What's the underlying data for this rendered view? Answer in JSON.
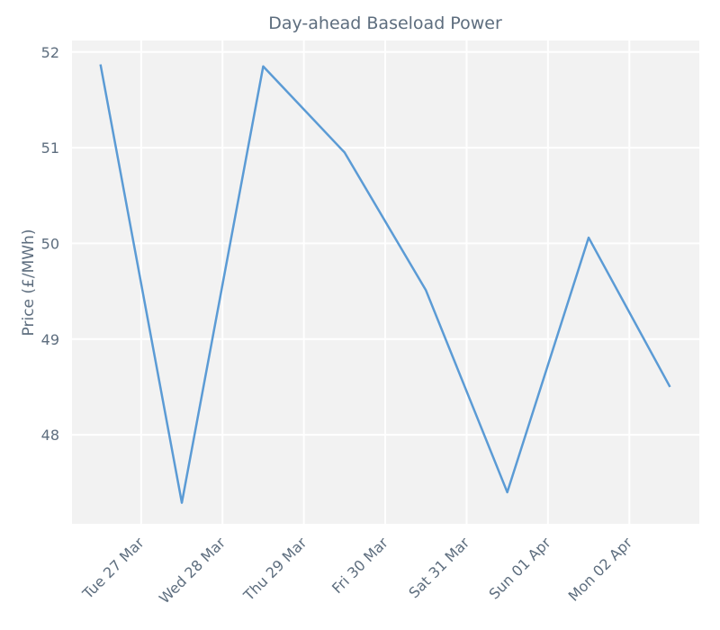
{
  "chart_data": {
    "type": "line",
    "title": "Day-ahead Baseload Power",
    "y_label": "Price (£/MWh)",
    "x": [
      0,
      1,
      2,
      3,
      4,
      5,
      6,
      7
    ],
    "series": [
      {
        "name": "Price",
        "color": "#5b9bd5",
        "values": [
          51.87,
          47.29,
          51.85,
          50.95,
          49.51,
          47.4,
          50.06,
          48.5
        ]
      }
    ],
    "xlim": [
      -0.35,
      7.36
    ],
    "xticks": [
      {
        "value": 0.5,
        "label": "Tue 27 Mar"
      },
      {
        "value": 1.5,
        "label": "Wed 28 Mar"
      },
      {
        "value": 2.5,
        "label": "Thu 29 Mar"
      },
      {
        "value": 3.5,
        "label": "Fri 30 Mar"
      },
      {
        "value": 4.5,
        "label": "Sat 31 Mar"
      },
      {
        "value": 5.5,
        "label": "Sun 01 Apr"
      },
      {
        "value": 6.5,
        "label": "Mon 02 Apr"
      }
    ],
    "ylim": [
      47.07,
      52.12
    ],
    "yticks": [
      48,
      49,
      50,
      51,
      52
    ],
    "grid": true
  }
}
